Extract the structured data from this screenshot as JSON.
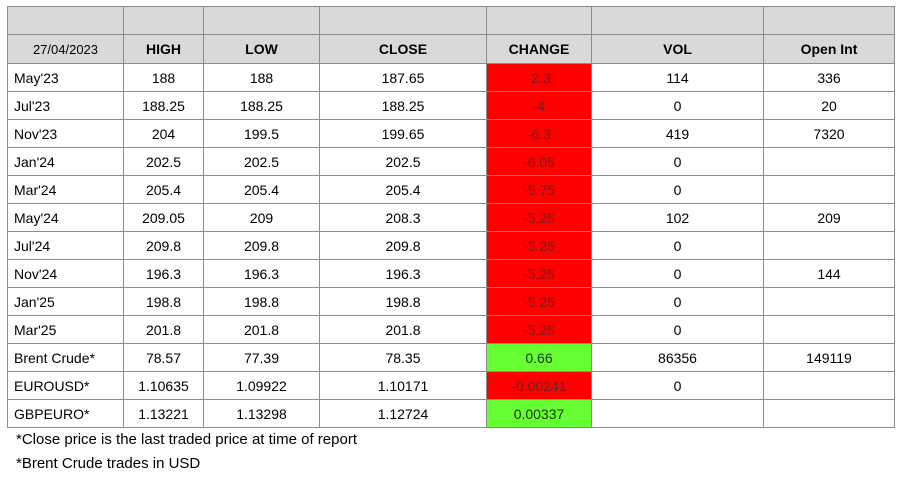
{
  "header": {
    "date": "27/04/2023",
    "columns": [
      "HIGH",
      "LOW",
      "CLOSE",
      "CHANGE",
      "VOL",
      "Open Int"
    ]
  },
  "colors": {
    "negative_change": "#ff0000",
    "positive_change": "#66ff33",
    "header_bg": "#d9d9d9"
  },
  "rows": [
    {
      "name": "May'23",
      "high": "188",
      "low": "188",
      "close": "187.65",
      "change": "-2.3",
      "change_dir": "neg",
      "vol": "114",
      "oi": "336"
    },
    {
      "name": "Jul'23",
      "high": "188.25",
      "low": "188.25",
      "close": "188.25",
      "change": "-4",
      "change_dir": "neg",
      "vol": "0",
      "oi": "20"
    },
    {
      "name": "Nov'23",
      "high": "204",
      "low": "199.5",
      "close": "199.65",
      "change": "-6.3",
      "change_dir": "neg",
      "vol": "419",
      "oi": "7320"
    },
    {
      "name": "Jan'24",
      "high": "202.5",
      "low": "202.5",
      "close": "202.5",
      "change": "-6.05",
      "change_dir": "neg",
      "vol": "0",
      "oi": ""
    },
    {
      "name": "Mar'24",
      "high": "205.4",
      "low": "205.4",
      "close": "205.4",
      "change": "-5.75",
      "change_dir": "neg",
      "vol": "0",
      "oi": ""
    },
    {
      "name": "May'24",
      "high": "209.05",
      "low": "209",
      "close": "208.3",
      "change": "-5.25",
      "change_dir": "neg",
      "vol": "102",
      "oi": "209"
    },
    {
      "name": "Jul'24",
      "high": "209.8",
      "low": "209.8",
      "close": "209.8",
      "change": "-5.25",
      "change_dir": "neg",
      "vol": "0",
      "oi": ""
    },
    {
      "name": "Nov'24",
      "high": "196.3",
      "low": "196.3",
      "close": "196.3",
      "change": "-5.25",
      "change_dir": "neg",
      "vol": "0",
      "oi": "144"
    },
    {
      "name": "Jan'25",
      "high": "198.8",
      "low": "198.8",
      "close": "198.8",
      "change": "-5.25",
      "change_dir": "neg",
      "vol": "0",
      "oi": ""
    },
    {
      "name": "Mar'25",
      "high": "201.8",
      "low": "201.8",
      "close": "201.8",
      "change": "-5.25",
      "change_dir": "neg",
      "vol": "0",
      "oi": ""
    },
    {
      "name": "Brent Crude*",
      "high": "78.57",
      "low": "77.39",
      "close": "78.35",
      "change": "0.66",
      "change_dir": "pos",
      "vol": "86356",
      "oi": "149119"
    },
    {
      "name": "EUROUSD*",
      "high": "1.10635",
      "low": "1.09922",
      "close": "1.10171",
      "change": "-0.00241",
      "change_dir": "neg",
      "vol": "0",
      "oi": ""
    },
    {
      "name": "GBPEURO*",
      "high": "1.13221",
      "low": "1.13298",
      "close": "1.12724",
      "change": "0.00337",
      "change_dir": "pos",
      "vol": "",
      "oi": ""
    }
  ],
  "notes": [
    "*Close price is the last traded price at time of report",
    "*Brent Crude trades in USD"
  ]
}
